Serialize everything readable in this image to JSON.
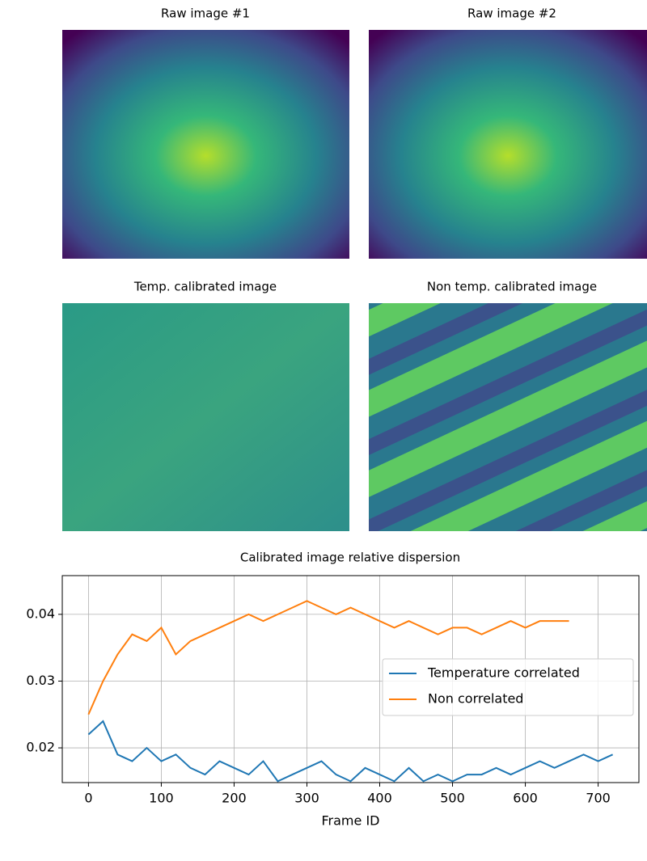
{
  "chart_data": [
    {
      "type": "image",
      "title": "Raw image #1",
      "color": "viridis"
    },
    {
      "type": "image",
      "title": "Raw image #2",
      "color": "viridis"
    },
    {
      "type": "image",
      "title": "Temp. calibrated image",
      "color": "viridis"
    },
    {
      "type": "image",
      "title": "Non temp. calibrated image",
      "color": "viridis"
    },
    {
      "type": "line",
      "title": "Calibrated image relative dispersion",
      "x_label": "Frame ID",
      "xlim": [
        -36,
        756
      ],
      "ylim": [
        0.0148,
        0.0458
      ],
      "xticks": [
        0,
        100,
        200,
        300,
        400,
        500,
        600,
        700
      ],
      "yticks": [
        0.02,
        0.03,
        0.04
      ],
      "grid": true,
      "legend": "center right",
      "series": [
        {
          "name": "Temperature correlated",
          "color": "#1f77b4",
          "x": [
            0,
            20,
            40,
            60,
            80,
            100,
            120,
            140,
            160,
            180,
            200,
            220,
            240,
            260,
            280,
            300,
            320,
            340,
            360,
            380,
            400,
            420,
            440,
            460,
            480,
            500,
            520,
            540,
            560,
            580,
            600,
            620,
            640,
            660,
            680,
            700,
            720
          ],
          "values": [
            0.022,
            0.024,
            0.019,
            0.018,
            0.02,
            0.018,
            0.019,
            0.017,
            0.016,
            0.018,
            0.017,
            0.016,
            0.018,
            0.015,
            0.016,
            0.017,
            0.018,
            0.016,
            0.015,
            0.017,
            0.016,
            0.015,
            0.017,
            0.015,
            0.016,
            0.015,
            0.016,
            0.016,
            0.017,
            0.016,
            0.017,
            0.018,
            0.017,
            0.018,
            0.019,
            0.018,
            0.019
          ]
        },
        {
          "name": "Non correlated",
          "color": "#ff7f0e",
          "x": [
            0,
            20,
            40,
            60,
            80,
            100,
            120,
            140,
            160,
            180,
            200,
            220,
            240,
            260,
            280,
            300,
            320,
            340,
            360,
            380,
            400,
            420,
            440,
            460,
            480,
            500,
            520,
            540,
            560,
            580,
            600,
            620,
            640,
            660
          ],
          "values": [
            0.025,
            0.03,
            0.034,
            0.037,
            0.036,
            0.038,
            0.034,
            0.036,
            0.037,
            0.038,
            0.039,
            0.04,
            0.039,
            0.04,
            0.041,
            0.042,
            0.041,
            0.04,
            0.041,
            0.04,
            0.039,
            0.038,
            0.039,
            0.038,
            0.037,
            0.038,
            0.038,
            0.037,
            0.038,
            0.039,
            0.038,
            0.039,
            0.039,
            0.039
          ]
        }
      ]
    }
  ]
}
